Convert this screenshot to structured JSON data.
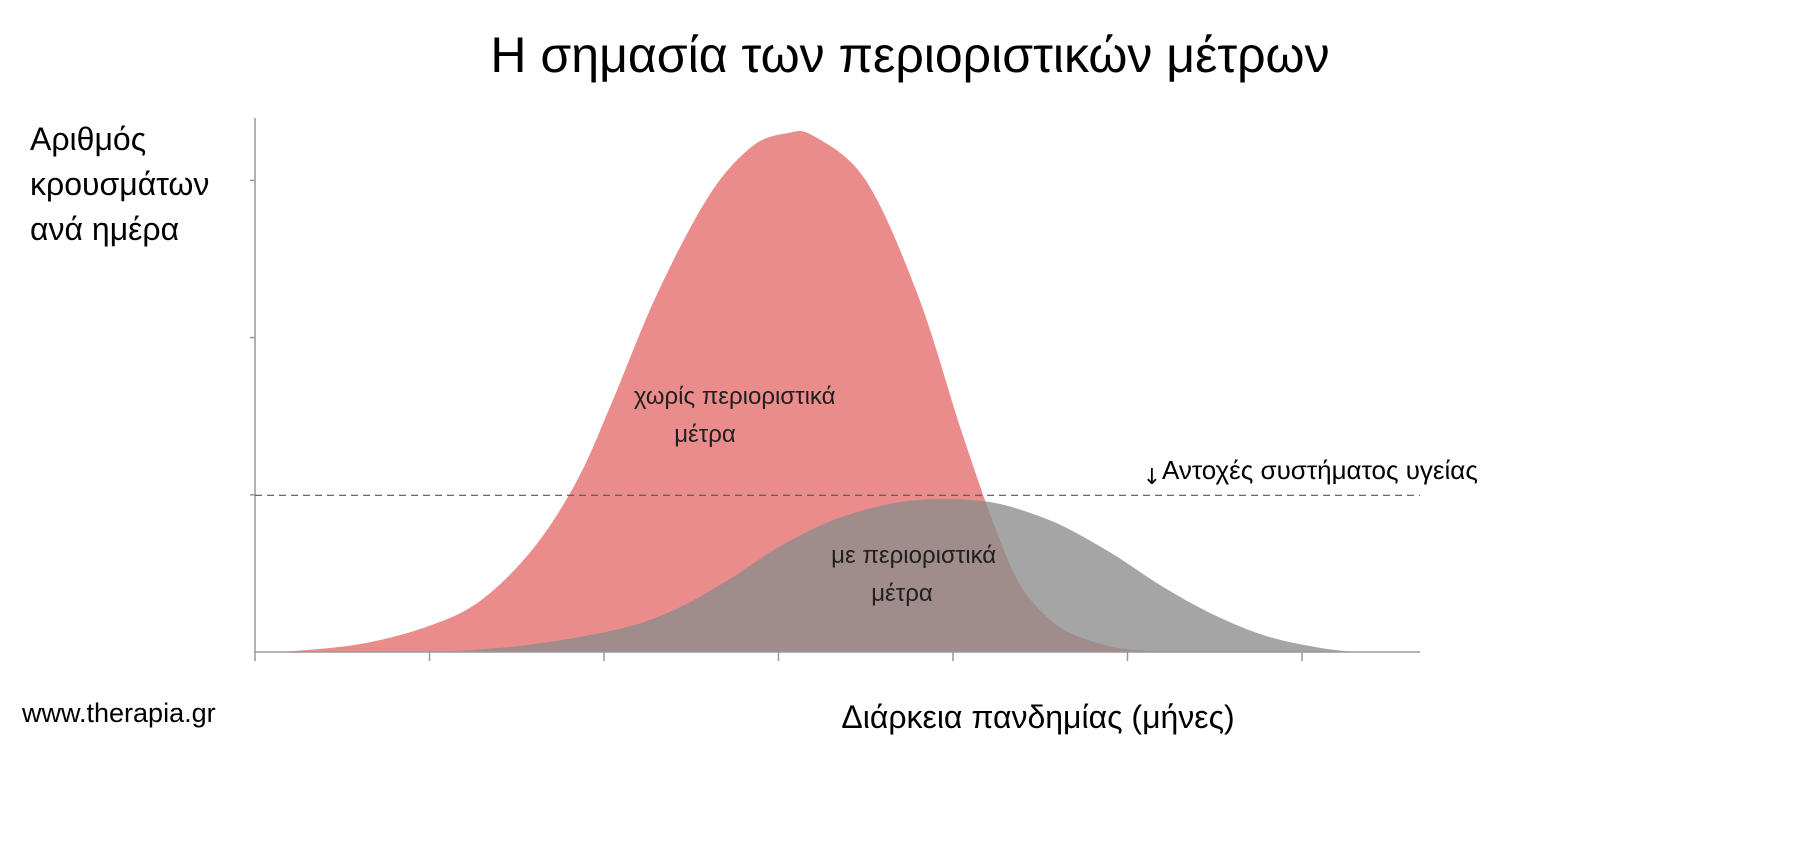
{
  "chart_data": {
    "type": "area",
    "title": "Η σημασία των περιοριστικών μέτρων",
    "ylabel_lines": [
      "Αριθμός",
      "κρουσμάτων",
      "ανά ημέρα"
    ],
    "xlabel": "Διάρκεια πανδημίας (μήνες)",
    "x_ticks": 7,
    "xlim": [
      0,
      6.7
    ],
    "ylim": [
      0,
      1.0
    ],
    "y_ticks": [
      0.3,
      0.6,
      0.9
    ],
    "grid": false,
    "series": [
      {
        "label_lines": [
          "χωρίς περιοριστικά",
          "μέτρα"
        ],
        "color": "#E57373",
        "opacity": 0.82,
        "x": [
          0.15,
          0.6,
          1.0,
          1.3,
          1.6,
          1.85,
          2.05,
          2.3,
          2.6,
          2.85,
          3.05,
          3.2,
          3.5,
          3.8,
          4.05,
          4.25,
          4.4,
          4.6,
          4.8,
          5.0,
          5.3,
          5.6
        ],
        "y": [
          0.0,
          0.015,
          0.05,
          0.1,
          0.2,
          0.33,
          0.48,
          0.68,
          0.87,
          0.965,
          0.99,
          0.985,
          0.9,
          0.68,
          0.42,
          0.23,
          0.12,
          0.05,
          0.02,
          0.005,
          0.0,
          0.0
        ]
      },
      {
        "label_lines": [
          "με περιοριστικά",
          "μέτρα"
        ],
        "color": "#8C8C8C",
        "opacity": 0.78,
        "x": [
          1.1,
          1.6,
          2.1,
          2.4,
          2.7,
          3.0,
          3.3,
          3.6,
          3.8,
          3.95,
          4.1,
          4.3,
          4.6,
          4.9,
          5.2,
          5.5,
          5.8,
          6.1,
          6.3
        ],
        "y": [
          0.0,
          0.015,
          0.045,
          0.08,
          0.135,
          0.2,
          0.25,
          0.28,
          0.29,
          0.292,
          0.29,
          0.28,
          0.245,
          0.19,
          0.125,
          0.07,
          0.03,
          0.008,
          0.0
        ]
      }
    ],
    "threshold": {
      "y": 0.3,
      "label": "Αντοχές συστήματος υγείας",
      "arrow": "↓"
    }
  },
  "source": "www.therapia.gr",
  "colors": {
    "axis": "#999999",
    "threshold": "#555555"
  }
}
